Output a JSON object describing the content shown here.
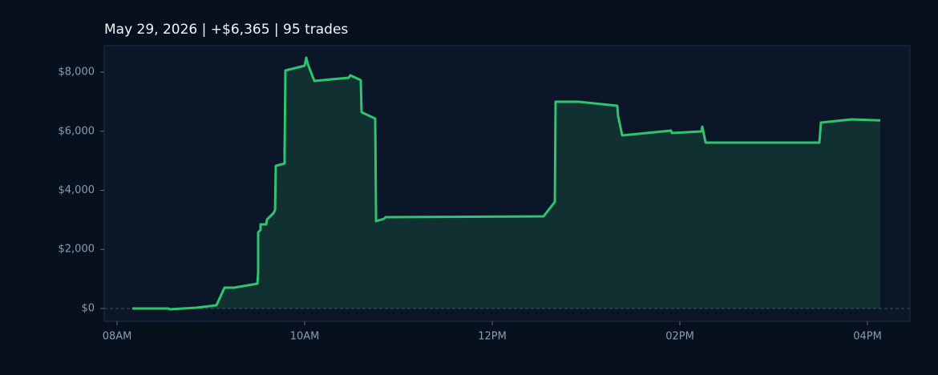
{
  "chart_data": {
    "type": "area",
    "title": "May 29, 2026  |  +$6,365  |  95 trades",
    "x": [
      8.162,
      8.547,
      8.564,
      8.846,
      9.06,
      9.145,
      9.248,
      9.496,
      9.504,
      9.504,
      9.53,
      9.53,
      9.59,
      9.598,
      9.667,
      9.684,
      9.692,
      9.786,
      9.786,
      9.795,
      10.0,
      10.017,
      10.034,
      10.103,
      10.47,
      10.487,
      10.598,
      10.607,
      10.752,
      10.761,
      10.846,
      10.863,
      12.547,
      12.667,
      12.675,
      12.923,
      13.333,
      13.342,
      13.385,
      13.906,
      13.915,
      14.231,
      14.239,
      14.274,
      15.487,
      15.504,
      15.829,
      16.137
    ],
    "values": [
      0,
      0,
      -27,
      27,
      108,
      705,
      705,
      841,
      1220,
      2576,
      2658,
      2847,
      2847,
      3010,
      3227,
      3336,
      4827,
      4908,
      5288,
      8054,
      8217,
      8488,
      8271,
      7702,
      7810,
      7892,
      7729,
      6644,
      6427,
      2956,
      3037,
      3092,
      3119,
      3607,
      6997,
      6997,
      6861,
      6508,
      5858,
      6020,
      5939,
      5993,
      6156,
      5614,
      5614,
      6292,
      6400,
      6365
    ],
    "color": "#2fc46e",
    "xlim": [
      7.863,
      16.453
    ],
    "xticks": [
      {
        "value": 8,
        "label": "08AM"
      },
      {
        "value": 10,
        "label": "10AM"
      },
      {
        "value": 12,
        "label": "12PM"
      },
      {
        "value": 14,
        "label": "02PM"
      },
      {
        "value": 16,
        "label": "04PM"
      }
    ],
    "ylim": [
      -434,
      8895
    ],
    "yticks": [
      {
        "value": 0,
        "label": "$0"
      },
      {
        "value": 2000,
        "label": "$2,000"
      },
      {
        "value": 4000,
        "label": "$4,000"
      },
      {
        "value": 6000,
        "label": "$6,000"
      },
      {
        "value": 8000,
        "label": "$8,000"
      }
    ],
    "grid": false
  }
}
